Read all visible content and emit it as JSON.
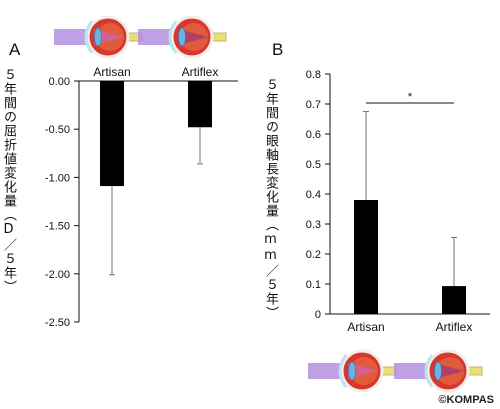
{
  "credit": "©KOMPAS",
  "chart_data": [
    {
      "type": "bar",
      "panel": "A",
      "ylabel": "５年間の屈折値変化量（D／５年）",
      "categories": [
        "Artisan",
        "Artiflex"
      ],
      "values": [
        -1.09,
        -0.48
      ],
      "error": [
        0.92,
        0.38
      ],
      "ylim": [
        -2.5,
        0.0
      ],
      "yticks": [
        "0.00",
        "-0.50",
        "-1.00",
        "-1.50",
        "-2.00",
        "-2.50"
      ],
      "grid": false,
      "bar_color": "#000000",
      "lens_colors": [
        "#c46bcf",
        "#7a2d8e"
      ]
    },
    {
      "type": "bar",
      "panel": "B",
      "ylabel": "５年間の眼軸長変化量（mm／５年）",
      "categories": [
        "Artisan",
        "Artiflex"
      ],
      "values": [
        0.38,
        0.093
      ],
      "error": [
        0.295,
        0.162
      ],
      "ylim": [
        0.0,
        0.8
      ],
      "yticks": [
        "0",
        "0.1",
        "0.2",
        "0.3",
        "0.4",
        "0.5",
        "0.6",
        "0.7",
        "0.8"
      ],
      "grid": false,
      "significance": "*",
      "bar_color": "#000000",
      "lens_colors": [
        "#c46bcf",
        "#7a2d8e"
      ]
    }
  ]
}
